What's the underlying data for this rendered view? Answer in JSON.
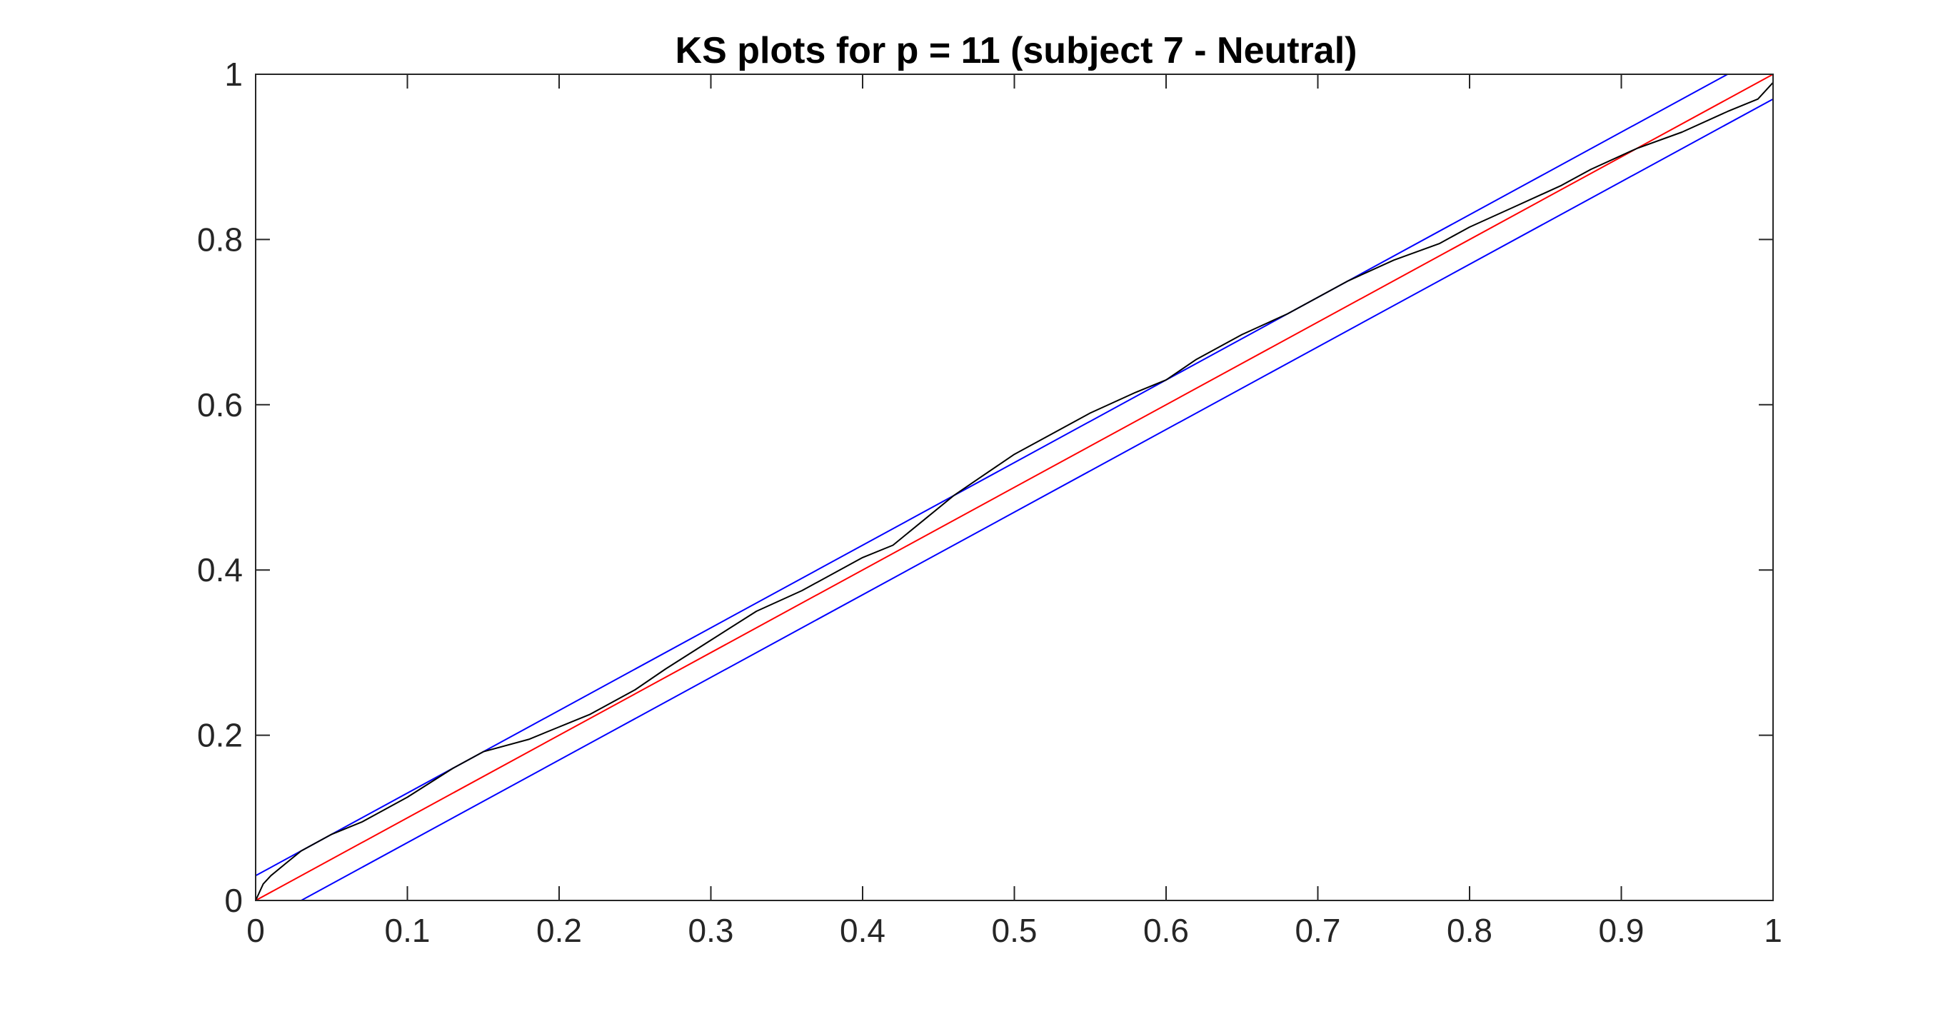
{
  "chart_data": {
    "type": "line",
    "title": "KS plots for p = 11 (subject 7 - Neutral)",
    "xlabel": "",
    "ylabel": "",
    "xlim": [
      0,
      1
    ],
    "ylim": [
      0,
      1
    ],
    "grid": false,
    "x_ticks": [
      0,
      0.1,
      0.2,
      0.3,
      0.4,
      0.5,
      0.6,
      0.7,
      0.8,
      0.9,
      1
    ],
    "x_tick_labels": [
      "0",
      "0.1",
      "0.2",
      "0.3",
      "0.4",
      "0.5",
      "0.6",
      "0.7",
      "0.8",
      "0.9",
      "1"
    ],
    "y_ticks": [
      0,
      0.2,
      0.4,
      0.6,
      0.8,
      1
    ],
    "y_tick_labels": [
      "0",
      "0.2",
      "0.4",
      "0.6",
      "0.8",
      "1"
    ],
    "series": [
      {
        "color": "#0000ff",
        "x": [
          0,
          0.97
        ],
        "y": [
          0.03,
          1.0
        ]
      },
      {
        "color": "#0000ff",
        "x": [
          0.03,
          1.0
        ],
        "y": [
          0,
          0.97
        ]
      },
      {
        "color": "#ff0000",
        "x": [
          0,
          1
        ],
        "y": [
          0,
          1
        ]
      },
      {
        "color": "#000000",
        "x": [
          0,
          0.005,
          0.01,
          0.02,
          0.03,
          0.05,
          0.07,
          0.1,
          0.13,
          0.15,
          0.18,
          0.2,
          0.22,
          0.25,
          0.27,
          0.3,
          0.33,
          0.36,
          0.4,
          0.42,
          0.44,
          0.46,
          0.48,
          0.5,
          0.52,
          0.55,
          0.58,
          0.6,
          0.62,
          0.65,
          0.68,
          0.7,
          0.72,
          0.75,
          0.78,
          0.8,
          0.83,
          0.86,
          0.88,
          0.91,
          0.94,
          0.97,
          0.99,
          1.0
        ],
        "y": [
          0,
          0.02,
          0.03,
          0.045,
          0.06,
          0.08,
          0.095,
          0.125,
          0.16,
          0.18,
          0.195,
          0.21,
          0.225,
          0.255,
          0.28,
          0.315,
          0.35,
          0.375,
          0.415,
          0.43,
          0.46,
          0.49,
          0.515,
          0.54,
          0.56,
          0.59,
          0.615,
          0.63,
          0.655,
          0.685,
          0.71,
          0.73,
          0.75,
          0.775,
          0.795,
          0.815,
          0.84,
          0.865,
          0.885,
          0.91,
          0.93,
          0.955,
          0.97,
          0.99
        ]
      }
    ]
  }
}
